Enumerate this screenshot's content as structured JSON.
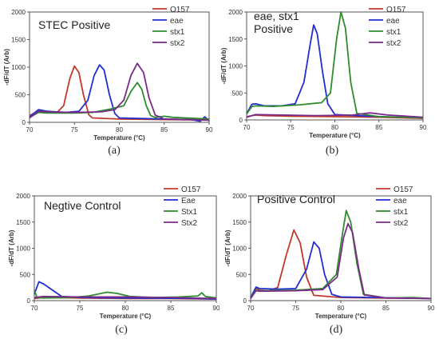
{
  "chart_data": [
    {
      "type": "line",
      "title": "STEC Positive",
      "label": "(a)",
      "xlabel": "Temperature (°C)",
      "ylabel": "-dF/dT (Arb)",
      "xlim": [
        70,
        90
      ],
      "ylim": [
        0,
        2000
      ],
      "xticks": [
        70,
        75,
        80,
        85,
        90
      ],
      "yticks": [
        0,
        500,
        1000,
        1500,
        2000
      ],
      "legend_position": "top-right",
      "series": [
        {
          "name": "O157",
          "color": "#c0392b",
          "points": [
            [
              70,
              120
            ],
            [
              71,
              210
            ],
            [
              72,
              190
            ],
            [
              73,
              170
            ],
            [
              73.8,
              300
            ],
            [
              74.5,
              800
            ],
            [
              75,
              1020
            ],
            [
              75.5,
              900
            ],
            [
              76,
              500
            ],
            [
              76.6,
              140
            ],
            [
              77,
              80
            ],
            [
              80,
              60
            ],
            [
              85,
              50
            ],
            [
              90,
              40
            ]
          ]
        },
        {
          "name": "eae",
          "color": "#1f2fd0",
          "points": [
            [
              70,
              100
            ],
            [
              71,
              230
            ],
            [
              72,
              200
            ],
            [
              74,
              180
            ],
            [
              75.5,
              200
            ],
            [
              76.5,
              400
            ],
            [
              77.2,
              850
            ],
            [
              77.8,
              1040
            ],
            [
              78.3,
              950
            ],
            [
              78.9,
              500
            ],
            [
              79.5,
              160
            ],
            [
              80,
              80
            ],
            [
              85,
              60
            ],
            [
              88,
              50
            ],
            [
              89,
              20
            ],
            [
              89.5,
              100
            ],
            [
              90,
              30
            ]
          ]
        },
        {
          "name": "stx1",
          "color": "#2e8b2e",
          "points": [
            [
              70,
              90
            ],
            [
              71,
              180
            ],
            [
              72,
              170
            ],
            [
              75,
              170
            ],
            [
              77,
              180
            ],
            [
              79,
              240
            ],
            [
              80.5,
              300
            ],
            [
              81.3,
              560
            ],
            [
              82,
              720
            ],
            [
              82.5,
              600
            ],
            [
              83,
              300
            ],
            [
              83.5,
              120
            ],
            [
              84,
              90
            ],
            [
              85,
              110
            ],
            [
              86,
              90
            ],
            [
              90,
              60
            ]
          ]
        },
        {
          "name": "stx2",
          "color": "#7b2a8a",
          "points": [
            [
              70,
              80
            ],
            [
              71,
              200
            ],
            [
              72,
              190
            ],
            [
              75,
              180
            ],
            [
              78,
              190
            ],
            [
              79.5,
              230
            ],
            [
              80.5,
              400
            ],
            [
              81.3,
              850
            ],
            [
              82,
              1070
            ],
            [
              82.7,
              900
            ],
            [
              83.3,
              450
            ],
            [
              84,
              130
            ],
            [
              85,
              60
            ],
            [
              90,
              40
            ]
          ]
        }
      ]
    },
    {
      "type": "line",
      "title": "eae, stx1\nPositive",
      "label": "(b)",
      "xlabel": "Temperature (°C)",
      "ylabel": "-dF/dT (Arb)",
      "xlim": [
        70,
        90
      ],
      "ylim": [
        0,
        2000
      ],
      "xticks": [
        70,
        75,
        80,
        85,
        90
      ],
      "yticks": [
        0,
        500,
        1000,
        1500,
        2000
      ],
      "legend_position": "top-right",
      "series": [
        {
          "name": "O157",
          "color": "#c0392b",
          "points": [
            [
              70,
              60
            ],
            [
              71,
              90
            ],
            [
              72,
              80
            ],
            [
              75,
              70
            ],
            [
              80,
              60
            ],
            [
              85,
              50
            ],
            [
              90,
              30
            ]
          ]
        },
        {
          "name": "eae",
          "color": "#1f2fd0",
          "points": [
            [
              70,
              120
            ],
            [
              70.6,
              290
            ],
            [
              71,
              300
            ],
            [
              72,
              260
            ],
            [
              74,
              260
            ],
            [
              75.5,
              300
            ],
            [
              76.5,
              700
            ],
            [
              77.2,
              1400
            ],
            [
              77.6,
              1760
            ],
            [
              78,
              1600
            ],
            [
              78.6,
              900
            ],
            [
              79.2,
              300
            ],
            [
              80,
              100
            ],
            [
              85,
              60
            ],
            [
              90,
              40
            ]
          ]
        },
        {
          "name": "stx1",
          "color": "#2e8b2e",
          "points": [
            [
              70,
              110
            ],
            [
              70.6,
              250
            ],
            [
              71,
              260
            ],
            [
              73,
              250
            ],
            [
              76,
              280
            ],
            [
              78.5,
              320
            ],
            [
              79.5,
              500
            ],
            [
              80.2,
              1500
            ],
            [
              80.7,
              2000
            ],
            [
              81.2,
              1700
            ],
            [
              81.8,
              700
            ],
            [
              82.5,
              120
            ],
            [
              85,
              60
            ],
            [
              90,
              40
            ]
          ]
        },
        {
          "name": "stx2",
          "color": "#7b2a8a",
          "points": [
            [
              70,
              50
            ],
            [
              71,
              100
            ],
            [
              74,
              90
            ],
            [
              78,
              80
            ],
            [
              82,
              90
            ],
            [
              84,
              130
            ],
            [
              86,
              90
            ],
            [
              90,
              50
            ]
          ]
        }
      ]
    },
    {
      "type": "line",
      "title": "Negtive Control",
      "label": "(c)",
      "xlabel": "Temperature (°C)",
      "ylabel": "-dF/dT (Arb)",
      "xlim": [
        70,
        90
      ],
      "ylim": [
        0,
        2000
      ],
      "xticks": [
        70,
        75,
        80,
        85,
        90
      ],
      "yticks": [
        0,
        500,
        1000,
        1500,
        2000
      ],
      "legend_position": "top-right",
      "series": [
        {
          "name": "O157",
          "color": "#c0392b",
          "points": [
            [
              70,
              40
            ],
            [
              71,
              60
            ],
            [
              75,
              50
            ],
            [
              80,
              40
            ],
            [
              85,
              40
            ],
            [
              90,
              30
            ]
          ]
        },
        {
          "name": "Eae",
          "color": "#1f2fd0",
          "points": [
            [
              70,
              120
            ],
            [
              70.5,
              360
            ],
            [
              71,
              320
            ],
            [
              72,
              200
            ],
            [
              73,
              80
            ],
            [
              75,
              60
            ],
            [
              80,
              50
            ],
            [
              88,
              40
            ],
            [
              90,
              30
            ]
          ]
        },
        {
          "name": "Stx1",
          "color": "#2e8b2e",
          "points": [
            [
              70,
              200
            ],
            [
              70.3,
              60
            ],
            [
              71,
              50
            ],
            [
              74,
              60
            ],
            [
              76,
              90
            ],
            [
              78,
              160
            ],
            [
              79,
              140
            ],
            [
              80.5,
              80
            ],
            [
              83,
              60
            ],
            [
              86,
              70
            ],
            [
              88,
              90
            ],
            [
              88.4,
              150
            ],
            [
              88.8,
              80
            ],
            [
              90,
              50
            ]
          ]
        },
        {
          "name": "Stx2",
          "color": "#7b2a8a",
          "points": [
            [
              70,
              60
            ],
            [
              71,
              80
            ],
            [
              75,
              70
            ],
            [
              80,
              70
            ],
            [
              85,
              60
            ],
            [
              90,
              40
            ]
          ]
        }
      ]
    },
    {
      "type": "line",
      "title": "Positive Control",
      "label": "(d)",
      "xlabel": "Temperature (°C)",
      "ylabel": "-dF/dT (Arb)",
      "xlim": [
        70,
        90
      ],
      "ylim": [
        0,
        2000
      ],
      "xticks": [
        70,
        75,
        80,
        85,
        90
      ],
      "yticks": [
        0,
        500,
        1000,
        1500,
        2000
      ],
      "legend_position": "top-right",
      "series": [
        {
          "name": "O157",
          "color": "#c0392b",
          "points": [
            [
              70,
              40
            ],
            [
              70.6,
              240
            ],
            [
              71,
              200
            ],
            [
              72,
              190
            ],
            [
              73,
              250
            ],
            [
              74,
              900
            ],
            [
              74.8,
              1350
            ],
            [
              75.5,
              1100
            ],
            [
              76.2,
              450
            ],
            [
              77,
              100
            ],
            [
              80,
              60
            ],
            [
              90,
              40
            ]
          ]
        },
        {
          "name": "eae",
          "color": "#1f2fd0",
          "points": [
            [
              70,
              60
            ],
            [
              70.6,
              260
            ],
            [
              71,
              230
            ],
            [
              73,
              220
            ],
            [
              75,
              230
            ],
            [
              76.2,
              600
            ],
            [
              77,
              1120
            ],
            [
              77.6,
              1000
            ],
            [
              78.2,
              500
            ],
            [
              79,
              120
            ],
            [
              80,
              70
            ],
            [
              90,
              40
            ]
          ]
        },
        {
          "name": "stx1",
          "color": "#2e8b2e",
          "points": [
            [
              70,
              50
            ],
            [
              70.6,
              200
            ],
            [
              71,
              190
            ],
            [
              75,
              200
            ],
            [
              78,
              230
            ],
            [
              79.5,
              500
            ],
            [
              80.2,
              1300
            ],
            [
              80.6,
              1720
            ],
            [
              81.1,
              1500
            ],
            [
              81.8,
              700
            ],
            [
              82.5,
              120
            ],
            [
              85,
              50
            ],
            [
              88,
              60
            ],
            [
              90,
              40
            ]
          ]
        },
        {
          "name": "stx2",
          "color": "#7b2a8a",
          "points": [
            [
              70,
              40
            ],
            [
              70.6,
              190
            ],
            [
              71,
              180
            ],
            [
              75,
              190
            ],
            [
              78,
              210
            ],
            [
              79.6,
              450
            ],
            [
              80.3,
              1200
            ],
            [
              80.8,
              1470
            ],
            [
              81.3,
              1300
            ],
            [
              82,
              600
            ],
            [
              82.6,
              110
            ],
            [
              85,
              50
            ],
            [
              90,
              40
            ]
          ]
        }
      ]
    }
  ]
}
